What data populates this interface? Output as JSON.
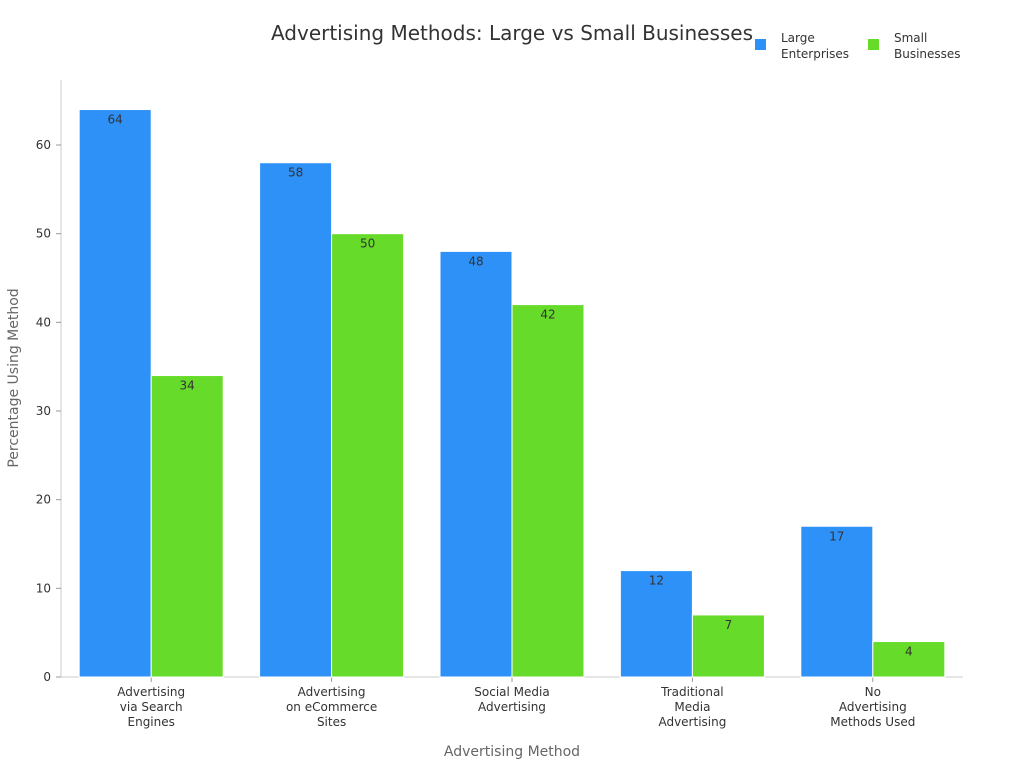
{
  "chart_data": {
    "type": "bar",
    "title": "Advertising Methods: Large vs Small Businesses",
    "xlabel": "Advertising Method",
    "ylabel": "Percentage Using Method",
    "ylim": [
      0,
      67
    ],
    "yticks": [
      0,
      10,
      20,
      30,
      40,
      50,
      60
    ],
    "grid": false,
    "legend_position": "top-right",
    "categories": [
      [
        "Advertising",
        "via Search",
        "Engines"
      ],
      [
        "Advertising",
        "on eCommerce",
        "Sites"
      ],
      [
        "Social Media",
        "Advertising"
      ],
      [
        "Traditional",
        "Media",
        "Advertising"
      ],
      [
        "No",
        "Advertising",
        "Methods Used"
      ]
    ],
    "series": [
      {
        "name": [
          "Large",
          "Enterprises"
        ],
        "color": "#2e91f7",
        "values": [
          64,
          58,
          48,
          12,
          17
        ]
      },
      {
        "name": [
          "Small",
          "Businesses"
        ],
        "color": "#66db29",
        "values": [
          34,
          50,
          42,
          7,
          4
        ]
      }
    ]
  }
}
